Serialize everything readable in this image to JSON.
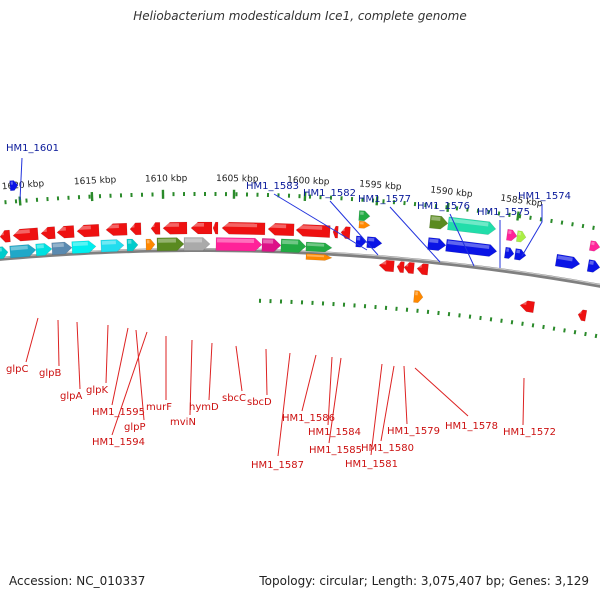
{
  "title": "Heliobacterium modesticaldum Ice1, complete genome",
  "footer": {
    "accession": "Accession: NC_010337",
    "topology": "Topology: circular; Length: 3,075,407 bp; Genes: 3,129"
  },
  "colors": {
    "forward_label": "#0a1a9a",
    "reverse_label": "#cc1111",
    "tick": "#2a8a2a",
    "backbone": "#808080"
  },
  "scale_labels": [
    "1620 kbp",
    "1615 kbp",
    "1610 kbp",
    "1605 kbp",
    "1600 kbp",
    "1595 kbp",
    "1590 kbp",
    "1585 kbp"
  ],
  "forward_genes": [
    "HM1_1601",
    "HM1_1583",
    "HM1_1582",
    "HM1_1577",
    "HM1_1576",
    "HM1_1575",
    "HM1_1574"
  ],
  "reverse_genes": [
    "glpC",
    "glpB",
    "glpA",
    "glpK",
    "HM1_1595",
    "glpP",
    "HM1_1594",
    "murF",
    "mviN",
    "hymD",
    "sbcC",
    "sbcD",
    "HM1_1587",
    "HM1_1586",
    "HM1_1584",
    "HM1_1585",
    "HM1_1581",
    "HM1_1580",
    "HM1_1579",
    "HM1_1578",
    "HM1_1572"
  ]
}
